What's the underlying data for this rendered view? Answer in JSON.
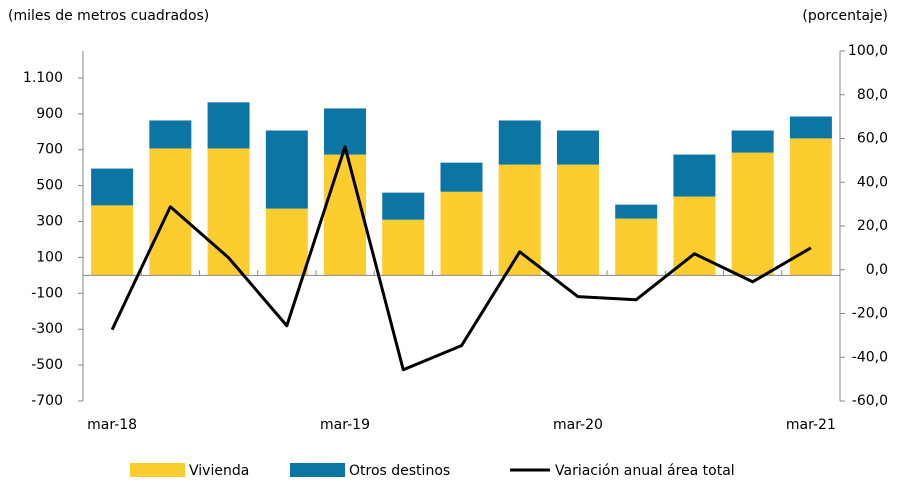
{
  "chart_data": {
    "type": "bar-line",
    "y_label": "(miles de metros cuadrados)",
    "y2_label": "(porcentaje)",
    "categories": [
      "mar-18",
      null,
      null,
      null,
      "mar-19",
      null,
      null,
      null,
      "mar-20",
      null,
      null,
      null,
      "mar-21"
    ],
    "series": [
      {
        "name": "Vivienda",
        "type": "bar",
        "color": "#fccd2f",
        "values": [
          390,
          707,
          707,
          372,
          673,
          310,
          466,
          617,
          617,
          316,
          439,
          684,
          763
        ]
      },
      {
        "name": "Otros destinos",
        "type": "bar",
        "color": "#0c75a3",
        "values": [
          205,
          156,
          257,
          435,
          257,
          151,
          162,
          246,
          190,
          78,
          234,
          123,
          122
        ]
      },
      {
        "name": "Variación anual área total",
        "type": "line",
        "axis": "y2",
        "color": "#000000",
        "values": [
          -27.4,
          28.8,
          5.5,
          -25.6,
          56.2,
          -45.7,
          -34.7,
          8.2,
          -12.3,
          -13.7,
          7.3,
          -5.5,
          10.0
        ]
      }
    ],
    "ylim": [
      -700,
      1250
    ],
    "yticks": [
      {
        "value": -700,
        "label": "-700"
      },
      {
        "value": -500,
        "label": "-500"
      },
      {
        "value": -300,
        "label": "-300"
      },
      {
        "value": -100,
        "label": "-100"
      },
      100,
      300,
      500,
      700,
      900,
      {
        "value": 1100,
        "label": "1.100"
      }
    ],
    "y2lim": [
      -60,
      100
    ],
    "y2ticks": [
      {
        "value": -60,
        "label": "-60,0"
      },
      {
        "value": -40,
        "label": "-40,0"
      },
      {
        "value": -20,
        "label": "-20,0"
      },
      {
        "value": 0,
        "label": "0,0"
      },
      {
        "value": 20,
        "label": "20,0"
      },
      {
        "value": 40,
        "label": "40,0"
      },
      {
        "value": 60,
        "label": "60,0"
      },
      {
        "value": 80,
        "label": "80,0"
      },
      {
        "value": 100,
        "label": "100,0"
      }
    ],
    "grid": false
  }
}
